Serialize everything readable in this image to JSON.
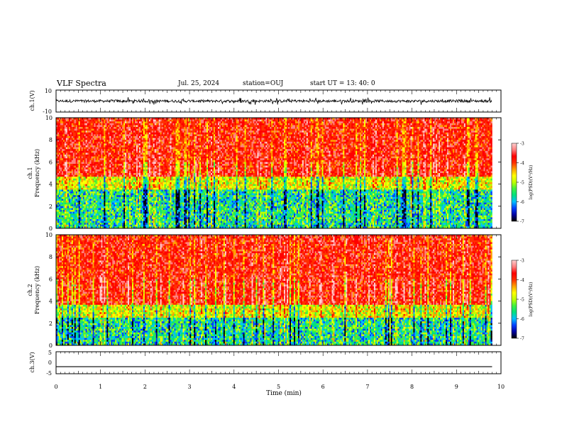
{
  "header": {
    "title": "VLF Spectra",
    "date": "Jul. 25, 2024",
    "station": "station=OUJ",
    "start": "start UT =  13: 40: 0"
  },
  "chart_data": [
    {
      "type": "line",
      "panel": "ch1-waveform",
      "ylabel": "ch.1(V)",
      "ylim": [
        -10,
        10
      ],
      "yticks": [
        "10",
        "-10"
      ],
      "xlim": [
        0,
        10
      ],
      "data_extent_min": 9.8,
      "baseline": 0
    },
    {
      "type": "heatmap",
      "panel": "ch1-spectrogram",
      "ylabel": "ch.1\nFrequency (kHz)",
      "ylim": [
        0,
        10
      ],
      "yticks": [
        "0",
        "2",
        "4",
        "6",
        "8",
        "10"
      ],
      "xlim": [
        0,
        10
      ],
      "data_extent_min": 9.8,
      "colorbar": {
        "label": "log(PSD)(V²/Hz)",
        "range": [
          -7,
          -3
        ],
        "ticks": [
          "-3",
          "-4",
          "-5",
          "-6",
          "-7"
        ]
      }
    },
    {
      "type": "heatmap",
      "panel": "ch2-spectrogram",
      "ylabel": "ch.2\nFrequency (kHz)",
      "ylim": [
        0,
        10
      ],
      "yticks": [
        "0",
        "2",
        "4",
        "6",
        "8",
        "10"
      ],
      "xlim": [
        0,
        10
      ],
      "data_extent_min": 9.8,
      "colorbar": {
        "label": "log(PSD)(V²/Hz)",
        "range": [
          -7,
          -3
        ],
        "ticks": [
          "-3",
          "-4",
          "-5",
          "-6",
          "-7"
        ]
      }
    },
    {
      "type": "line",
      "panel": "ch3-waveform",
      "ylabel": "ch.3(V)",
      "ylim": [
        -5,
        5
      ],
      "yticks": [
        "5",
        "0",
        "-5"
      ],
      "xlim": [
        0,
        10
      ],
      "data_extent_min": 9.8,
      "constant_value": -1.8
    }
  ],
  "xaxis": {
    "label": "Time (min)",
    "ticks": [
      "0",
      "1",
      "2",
      "3",
      "4",
      "5",
      "6",
      "7",
      "8",
      "9",
      "10"
    ]
  },
  "colormap": [
    "#000000",
    "#0000a0",
    "#0040ff",
    "#00c0ff",
    "#00e080",
    "#40f040",
    "#c0ff00",
    "#ffff00",
    "#ffa000",
    "#ff3000",
    "#ff0000",
    "#ff8080",
    "#ffd0d0"
  ]
}
